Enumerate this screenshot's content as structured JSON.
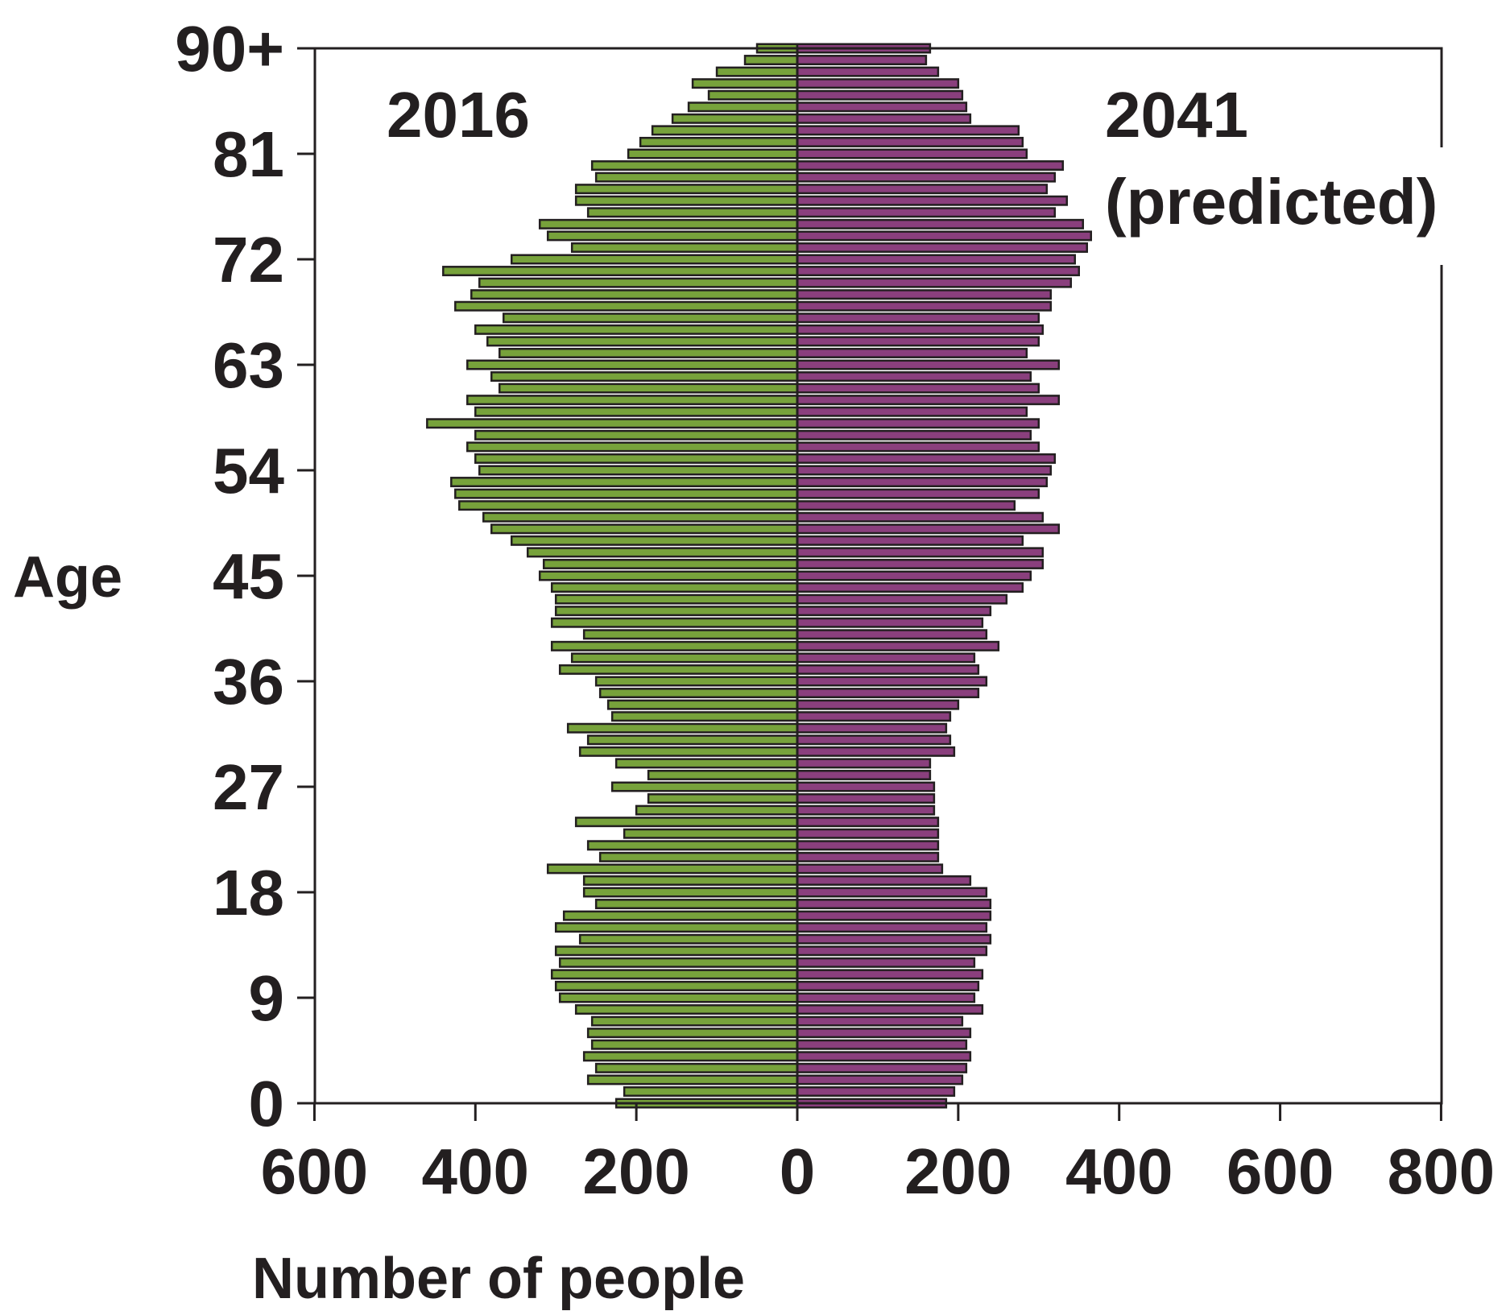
{
  "chart_data": {
    "type": "bar",
    "subtype": "population-pyramid",
    "ylabel": "Age",
    "xlabel": "Number of people",
    "y_ticks": [
      "0",
      "9",
      "18",
      "27",
      "36",
      "45",
      "54",
      "63",
      "72",
      "81",
      "90+"
    ],
    "x_ticks": [
      "600",
      "400",
      "200",
      "0",
      "200",
      "400",
      "600",
      "800"
    ],
    "xlim": [
      -600,
      800
    ],
    "ylim": [
      0,
      90
    ],
    "grid": false,
    "colors": {
      "left": "#77a23b",
      "right": "#8a3f7d",
      "outline": "#231f20"
    },
    "ages": [
      0,
      1,
      2,
      3,
      4,
      5,
      6,
      7,
      8,
      9,
      10,
      11,
      12,
      13,
      14,
      15,
      16,
      17,
      18,
      19,
      20,
      21,
      22,
      23,
      24,
      25,
      26,
      27,
      28,
      29,
      30,
      31,
      32,
      33,
      34,
      35,
      36,
      37,
      38,
      39,
      40,
      41,
      42,
      43,
      44,
      45,
      46,
      47,
      48,
      49,
      50,
      51,
      52,
      53,
      54,
      55,
      56,
      57,
      58,
      59,
      60,
      61,
      62,
      63,
      64,
      65,
      66,
      67,
      68,
      69,
      70,
      71,
      72,
      73,
      74,
      75,
      76,
      77,
      78,
      79,
      80,
      81,
      82,
      83,
      84,
      85,
      86,
      87,
      88,
      89,
      90
    ],
    "series": [
      {
        "name": "2016",
        "side": "left",
        "values": [
          225,
          215,
          260,
          250,
          265,
          255,
          260,
          255,
          275,
          295,
          300,
          305,
          295,
          300,
          270,
          300,
          290,
          250,
          265,
          265,
          310,
          245,
          260,
          215,
          275,
          200,
          185,
          230,
          185,
          225,
          270,
          260,
          285,
          230,
          235,
          245,
          250,
          295,
          280,
          305,
          265,
          305,
          300,
          300,
          305,
          320,
          315,
          335,
          355,
          380,
          390,
          420,
          425,
          430,
          395,
          400,
          410,
          400,
          460,
          400,
          410,
          370,
          380,
          410,
          370,
          385,
          400,
          365,
          425,
          405,
          395,
          440,
          355,
          280,
          310,
          320,
          260,
          275,
          275,
          250,
          255,
          210,
          195,
          180,
          155,
          135,
          110,
          130,
          100,
          65,
          50
        ]
      },
      {
        "name": "2041 (predicted)",
        "side": "right",
        "values": [
          185,
          195,
          205,
          210,
          215,
          210,
          215,
          205,
          230,
          220,
          225,
          230,
          220,
          235,
          240,
          235,
          240,
          240,
          235,
          215,
          180,
          175,
          175,
          175,
          175,
          170,
          170,
          170,
          165,
          165,
          195,
          190,
          185,
          190,
          200,
          225,
          235,
          225,
          220,
          250,
          235,
          230,
          240,
          260,
          280,
          290,
          305,
          305,
          280,
          325,
          305,
          270,
          300,
          310,
          315,
          320,
          300,
          290,
          300,
          285,
          325,
          300,
          290,
          325,
          285,
          300,
          305,
          300,
          315,
          315,
          340,
          350,
          345,
          360,
          365,
          355,
          320,
          335,
          310,
          320,
          330,
          285,
          280,
          275,
          215,
          210,
          205,
          200,
          175,
          160,
          165
        ]
      }
    ],
    "annotations": [
      "2016",
      "2041",
      "(predicted)"
    ]
  }
}
